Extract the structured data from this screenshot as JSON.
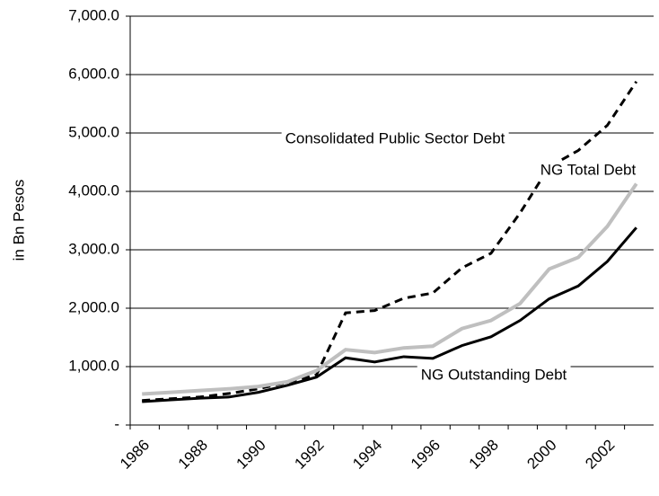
{
  "chart_data": {
    "type": "line",
    "y_label": "in Bn Pesos",
    "categories": [
      "1986",
      null,
      "1988",
      null,
      "1990",
      null,
      "1992",
      null,
      "1994",
      null,
      "1996",
      null,
      "1998",
      null,
      "2000",
      null,
      "2002",
      null
    ],
    "series": [
      {
        "name": "Consolidated Public Sector Debt",
        "color": "#000000",
        "style": "dashed",
        "values": [
          420,
          450,
          480,
          540,
          620,
          730,
          860,
          1920,
          1960,
          2170,
          2260,
          2690,
          2940,
          3630,
          4420,
          4700,
          5130,
          5880
        ]
      },
      {
        "name": "NG Total Debt",
        "color": "#bfbfbf",
        "style": "solid",
        "values": [
          530,
          560,
          590,
          620,
          660,
          740,
          930,
          1290,
          1240,
          1320,
          1350,
          1650,
          1790,
          2080,
          2670,
          2870,
          3400,
          4130
        ]
      },
      {
        "name": "NG Outstanding Debt",
        "color": "#000000",
        "style": "solid",
        "values": [
          400,
          430,
          460,
          480,
          560,
          680,
          820,
          1150,
          1080,
          1170,
          1140,
          1360,
          1510,
          1790,
          2160,
          2380,
          2800,
          3380
        ]
      }
    ],
    "ylim": [
      0,
      7000
    ],
    "yticks": [
      {
        "value": 0,
        "label": "-"
      },
      {
        "value": 1000,
        "label": "1,000.0"
      },
      {
        "value": 2000,
        "label": "2,000.0"
      },
      {
        "value": 3000,
        "label": "3,000.0"
      },
      {
        "value": 4000,
        "label": "4,000.0"
      },
      {
        "value": 5000,
        "label": "5,000.0"
      },
      {
        "value": 6000,
        "label": "6,000.0"
      },
      {
        "value": 7000,
        "label": "7,000.0"
      }
    ],
    "grid": true
  }
}
